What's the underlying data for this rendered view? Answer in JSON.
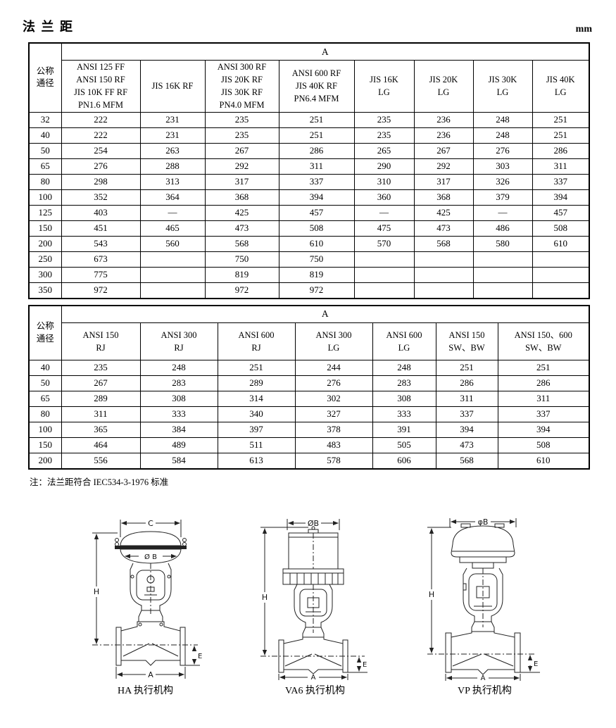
{
  "page": {
    "title": "法 兰 距",
    "unit": "mm",
    "note": "注：法兰距符合 IEC534-3-1976 标准"
  },
  "table1": {
    "corner": "公称\n通径",
    "span": "A",
    "columns": [
      "ANSI 125 FF\nANSI 150 RF\nJIS 10K FF RF\nPN1.6 MFM",
      "JIS 16K RF",
      "ANSI 300 RF\nJIS 20K RF\nJIS 30K RF\nPN4.0 MFM",
      "ANSI 600 RF\nJIS 40K RF\nPN6.4 MFM",
      "JIS 16K\nLG",
      "JIS 20K\nLG",
      "JIS 30K\nLG",
      "JIS 40K\nLG"
    ],
    "rows": [
      {
        "dn": "32",
        "values": [
          "222",
          "231",
          "235",
          "251",
          "235",
          "236",
          "248",
          "251"
        ]
      },
      {
        "dn": "40",
        "values": [
          "222",
          "231",
          "235",
          "251",
          "235",
          "236",
          "248",
          "251"
        ]
      },
      {
        "dn": "50",
        "values": [
          "254",
          "263",
          "267",
          "286",
          "265",
          "267",
          "276",
          "286"
        ]
      },
      {
        "dn": "65",
        "values": [
          "276",
          "288",
          "292",
          "311",
          "290",
          "292",
          "303",
          "311"
        ]
      },
      {
        "dn": "80",
        "values": [
          "298",
          "313",
          "317",
          "337",
          "310",
          "317",
          "326",
          "337"
        ]
      },
      {
        "dn": "100",
        "values": [
          "352",
          "364",
          "368",
          "394",
          "360",
          "368",
          "379",
          "394"
        ]
      },
      {
        "dn": "125",
        "values": [
          "403",
          "—",
          "425",
          "457",
          "—",
          "425",
          "—",
          "457"
        ]
      },
      {
        "dn": "150",
        "values": [
          "451",
          "465",
          "473",
          "508",
          "475",
          "473",
          "486",
          "508"
        ]
      },
      {
        "dn": "200",
        "values": [
          "543",
          "560",
          "568",
          "610",
          "570",
          "568",
          "580",
          "610"
        ]
      },
      {
        "dn": "250",
        "values": [
          "673",
          "",
          "750",
          "750",
          "",
          "",
          "",
          ""
        ]
      },
      {
        "dn": "300",
        "values": [
          "775",
          "",
          "819",
          "819",
          "",
          "",
          "",
          ""
        ]
      },
      {
        "dn": "350",
        "values": [
          "972",
          "",
          "972",
          "972",
          "",
          "",
          "",
          ""
        ]
      }
    ]
  },
  "table2": {
    "corner": "公称\n通径",
    "span": "A",
    "columns": [
      "ANSI 150\nRJ",
      "ANSI 300\nRJ",
      "ANSI 600\nRJ",
      "ANSI 300\nLG",
      "ANSI 600\nLG",
      "ANSI 150\nSW、BW",
      "ANSI 150、600\nSW、BW"
    ],
    "rows": [
      {
        "dn": "40",
        "values": [
          "235",
          "248",
          "251",
          "244",
          "248",
          "251",
          "251"
        ]
      },
      {
        "dn": "50",
        "values": [
          "267",
          "283",
          "289",
          "276",
          "283",
          "286",
          "286"
        ]
      },
      {
        "dn": "65",
        "values": [
          "289",
          "308",
          "314",
          "302",
          "308",
          "311",
          "311"
        ]
      },
      {
        "dn": "80",
        "values": [
          "311",
          "333",
          "340",
          "327",
          "333",
          "337",
          "337"
        ]
      },
      {
        "dn": "100",
        "values": [
          "365",
          "384",
          "397",
          "378",
          "391",
          "394",
          "394"
        ]
      },
      {
        "dn": "150",
        "values": [
          "464",
          "489",
          "511",
          "483",
          "505",
          "473",
          "508"
        ]
      },
      {
        "dn": "200",
        "values": [
          "556",
          "584",
          "613",
          "578",
          "606",
          "568",
          "610"
        ]
      }
    ]
  },
  "drawings": [
    {
      "caption": "HA 执行机构",
      "dim_top": "C",
      "dim_b": "Ø B",
      "dim_h": "H",
      "dim_a": "A",
      "dim_e": "E"
    },
    {
      "caption": "VA6 执行机构",
      "dim_top": "ØB",
      "dim_h": "H",
      "dim_a": "A",
      "dim_e": "E"
    },
    {
      "caption": "VP 执行机构",
      "dim_top": "φB",
      "dim_h": "H",
      "dim_a": "A",
      "dim_e": "E"
    }
  ]
}
